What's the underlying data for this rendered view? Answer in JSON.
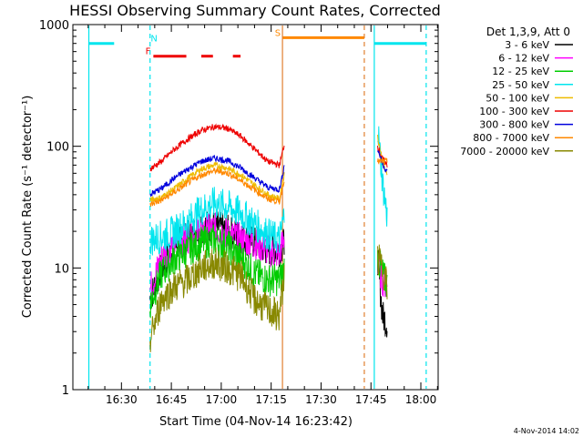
{
  "chart_data": {
    "type": "line",
    "title": "HESSI Observing Summary Count Rates, Corrected",
    "xlabel": "Start Time (04-Nov-14 16:23:42)",
    "ylabel": "Corrected Count Rate (s⁻¹ detector⁻¹)",
    "yscale": "log",
    "ylim": [
      1,
      1000
    ],
    "xlim_minutes": [
      16.4,
      19.6
    ],
    "x_unit": "hh:mm",
    "xticks": [
      {
        "minute": 0,
        "label": "16:30"
      },
      {
        "minute": 15,
        "label": "16:45"
      },
      {
        "minute": 30,
        "label": "17:00"
      },
      {
        "minute": 45,
        "label": "17:15"
      },
      {
        "minute": 60,
        "label": "17:30"
      },
      {
        "minute": 75,
        "label": "17:45"
      },
      {
        "minute": 90,
        "label": "18:00"
      }
    ],
    "yticks": [
      {
        "value": 1,
        "label": "1"
      },
      {
        "value": 10,
        "label": "10"
      },
      {
        "value": 100,
        "label": "100"
      },
      {
        "value": 1000,
        "label": "1000"
      }
    ],
    "legend": {
      "placement": "right",
      "header": "Det 1,3,9, Att 0",
      "entries": [
        {
          "label": "3 - 6 keV",
          "color": "#000000"
        },
        {
          "label": "6 - 12 keV",
          "color": "#ff00ff"
        },
        {
          "label": "12 - 25 keV",
          "color": "#00cc00"
        },
        {
          "label": "25 - 50 keV",
          "color": "#00e5ee"
        },
        {
          "label": "50 - 100 keV",
          "color": "#eebb00"
        },
        {
          "label": "100 - 300 keV",
          "color": "#ee0000"
        },
        {
          "label": "300 - 800 keV",
          "color": "#0000dd"
        },
        {
          "label": "800 - 7000 keV",
          "color": "#ff8800"
        },
        {
          "label": "7000 - 20000 keV",
          "color": "#888800"
        }
      ]
    },
    "flags": [
      {
        "label": "N",
        "color": "#00e5ee",
        "level": 700,
        "segments": [
          [
            -9.8,
            -2.2
          ]
        ],
        "text_minute": 9.8
      },
      {
        "label": "F",
        "color": "#ee0000",
        "level": 550,
        "segments": [
          [
            9.6,
            19.5
          ],
          [
            24.0,
            27.5
          ],
          [
            33.5,
            35.8
          ]
        ],
        "text_minute": 8.0
      },
      {
        "label": "S",
        "color": "#ff8800",
        "level": 780,
        "segments": [
          [
            48.4,
            73.0
          ]
        ],
        "text_minute": 47.0
      },
      {
        "label": "",
        "color": "#00e5ee",
        "level": 700,
        "segments": [
          [
            76.0,
            91.6
          ]
        ],
        "text_minute": 0
      }
    ],
    "event_lines": [
      {
        "minute": -9.8,
        "color": "#00e5ee",
        "style": "solid"
      },
      {
        "minute": 8.6,
        "color": "#00e5ee",
        "style": "dashed"
      },
      {
        "minute": 48.4,
        "color": "#e08030",
        "style": "solid"
      },
      {
        "minute": 73.0,
        "color": "#e08030",
        "style": "dashed"
      },
      {
        "minute": 76.0,
        "color": "#00e5ee",
        "style": "solid"
      },
      {
        "minute": 91.6,
        "color": "#00e5ee",
        "style": "dashed"
      }
    ],
    "data_windows_minutes": [
      [
        8.0,
        49.0
      ],
      [
        77.0,
        80.5
      ]
    ],
    "series": [
      {
        "name": "3 - 6 keV",
        "color": "#000000",
        "x": [
          8.5,
          12,
          16,
          20,
          24,
          28,
          32,
          36,
          40,
          44,
          47.5,
          49,
          77,
          78.5,
          80
        ],
        "y": [
          5.5,
          10,
          15,
          18,
          22,
          22,
          20,
          18,
          16,
          14,
          14,
          16,
          12,
          4,
          3.5
        ]
      },
      {
        "name": "6 - 12 keV",
        "color": "#ff00ff",
        "x": [
          8.5,
          12,
          16,
          20,
          24,
          28,
          32,
          36,
          40,
          44,
          47.5,
          49,
          77,
          78.5,
          80
        ],
        "y": [
          6.5,
          12,
          16,
          18,
          20,
          21,
          19,
          17,
          16,
          14,
          13,
          18,
          11,
          8,
          7
        ]
      },
      {
        "name": "12 - 25 keV",
        "color": "#00cc00",
        "x": [
          8.5,
          12,
          16,
          20,
          24,
          28,
          32,
          36,
          40,
          44,
          47.5,
          49,
          77,
          78.5,
          80
        ],
        "y": [
          5,
          9,
          12,
          14,
          16,
          17,
          15,
          12,
          9,
          8,
          8,
          10,
          12,
          9,
          7
        ]
      },
      {
        "name": "25 - 50 keV",
        "color": "#00e5ee",
        "x": [
          8.5,
          12,
          16,
          20,
          24,
          28,
          32,
          36,
          40,
          44,
          47.5,
          49,
          77,
          78.5,
          80
        ],
        "y": [
          17,
          18,
          20,
          24,
          30,
          34,
          32,
          28,
          23,
          19,
          17,
          28,
          150,
          50,
          25
        ]
      },
      {
        "name": "50 - 100 keV",
        "color": "#eebb00",
        "x": [
          8.5,
          12,
          16,
          20,
          24,
          28,
          32,
          36,
          40,
          44,
          47.5,
          49,
          77,
          78.5,
          80
        ],
        "y": [
          36,
          38,
          45,
          55,
          65,
          70,
          66,
          58,
          48,
          40,
          37,
          60,
          120,
          75,
          55
        ]
      },
      {
        "name": "100 - 300 keV",
        "color": "#ee0000",
        "x": [
          8.5,
          12,
          16,
          20,
          24,
          28,
          32,
          36,
          40,
          44,
          47.5,
          49,
          77,
          78.5,
          80
        ],
        "y": [
          65,
          75,
          95,
          115,
          135,
          145,
          140,
          120,
          95,
          75,
          70,
          105,
          100,
          78,
          70
        ]
      },
      {
        "name": "300 - 800 keV",
        "color": "#0000dd",
        "x": [
          8.5,
          12,
          16,
          20,
          24,
          28,
          32,
          36,
          40,
          44,
          47.5,
          49,
          77,
          78.5,
          80
        ],
        "y": [
          40,
          45,
          55,
          65,
          75,
          80,
          76,
          66,
          55,
          46,
          44,
          70,
          95,
          72,
          60
        ]
      },
      {
        "name": "800 - 7000 keV",
        "color": "#ff8800",
        "x": [
          8.5,
          12,
          16,
          20,
          24,
          28,
          32,
          36,
          40,
          44,
          47.5,
          49,
          77,
          78.5,
          80
        ],
        "y": [
          33,
          36,
          42,
          50,
          58,
          63,
          60,
          52,
          44,
          37,
          35,
          55,
          75,
          75,
          75
        ]
      },
      {
        "name": "7000 - 20000 keV",
        "color": "#888800",
        "x": [
          8.5,
          12,
          16,
          20,
          24,
          28,
          32,
          36,
          40,
          44,
          47.5,
          49,
          77,
          78.5,
          80
        ],
        "y": [
          2.5,
          5.5,
          7,
          8,
          10,
          11,
          10,
          8.5,
          5.5,
          4.5,
          4,
          9,
          12,
          10,
          7
        ]
      }
    ],
    "footer": "4-Nov-2014 14:02",
    "grid": false
  }
}
